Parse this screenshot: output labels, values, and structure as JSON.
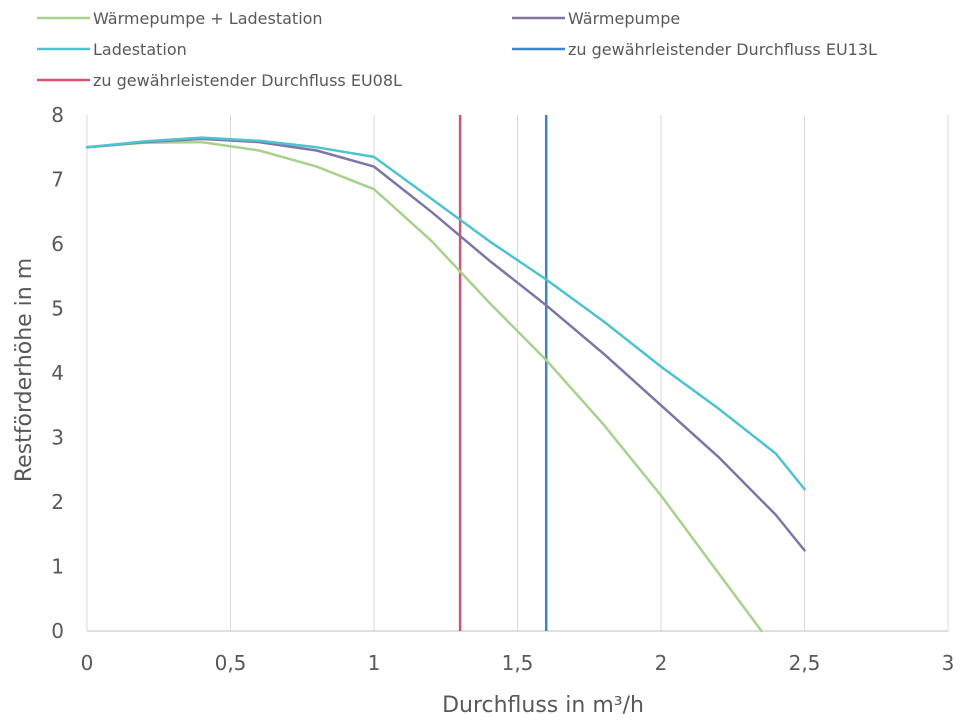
{
  "chart_data": {
    "type": "line",
    "xlabel": "Durchfluss in m³/h",
    "ylabel": "Restförderhöhe in m",
    "xlim": [
      0,
      3
    ],
    "ylim": [
      0,
      8
    ],
    "x_ticks": [
      0,
      0.5,
      1,
      1.5,
      2,
      2.5,
      3
    ],
    "x_tick_labels": [
      "0",
      "0,5",
      "1",
      "1,5",
      "2",
      "2,5",
      "3"
    ],
    "y_ticks": [
      0,
      1,
      2,
      3,
      4,
      5,
      6,
      7,
      8
    ],
    "y_tick_labels": [
      "0",
      "1",
      "2",
      "3",
      "4",
      "5",
      "6",
      "7",
      "8"
    ],
    "grid": "vertical",
    "legend_position": "top",
    "series": [
      {
        "name": "Wärmepumpe + Ladestation",
        "color": "#a9d18e",
        "points": [
          [
            0,
            7.5
          ],
          [
            0.2,
            7.57
          ],
          [
            0.4,
            7.58
          ],
          [
            0.6,
            7.45
          ],
          [
            0.8,
            7.2
          ],
          [
            1.0,
            6.85
          ],
          [
            1.2,
            6.05
          ],
          [
            1.4,
            5.1
          ],
          [
            1.6,
            4.2
          ],
          [
            1.8,
            3.2
          ],
          [
            2.0,
            2.1
          ],
          [
            2.2,
            0.9
          ],
          [
            2.35,
            0.0
          ]
        ]
      },
      {
        "name": "Wärmepumpe",
        "color": "#8074a6",
        "points": [
          [
            0,
            7.5
          ],
          [
            0.2,
            7.58
          ],
          [
            0.4,
            7.63
          ],
          [
            0.6,
            7.58
          ],
          [
            0.8,
            7.45
          ],
          [
            1.0,
            7.2
          ],
          [
            1.2,
            6.5
          ],
          [
            1.4,
            5.75
          ],
          [
            1.6,
            5.05
          ],
          [
            1.8,
            4.3
          ],
          [
            2.0,
            3.5
          ],
          [
            2.2,
            2.7
          ],
          [
            2.4,
            1.8
          ],
          [
            2.5,
            1.25
          ]
        ]
      },
      {
        "name": "Ladestation",
        "color": "#4dc3cf",
        "points": [
          [
            0,
            7.5
          ],
          [
            0.2,
            7.59
          ],
          [
            0.4,
            7.65
          ],
          [
            0.6,
            7.6
          ],
          [
            0.8,
            7.5
          ],
          [
            1.0,
            7.35
          ],
          [
            1.2,
            6.7
          ],
          [
            1.4,
            6.05
          ],
          [
            1.6,
            5.45
          ],
          [
            1.8,
            4.8
          ],
          [
            2.0,
            4.1
          ],
          [
            2.2,
            3.45
          ],
          [
            2.4,
            2.75
          ],
          [
            2.5,
            2.2
          ]
        ]
      }
    ],
    "reference_lines": [
      {
        "name": "zu gewährleistender Durchfluss EU13L",
        "color": "#3c86c4",
        "x": 1.6
      },
      {
        "name": "zu gewährleistender Durchfluss EU08L",
        "color": "#d6536b",
        "x": 1.3
      }
    ],
    "legend": [
      {
        "name": "Wärmepumpe + Ladestation",
        "color": "#a9d18e"
      },
      {
        "name": "Wärmepumpe",
        "color": "#8074a6"
      },
      {
        "name": "Ladestation",
        "color": "#4dc3cf"
      },
      {
        "name": "zu gewährleistender Durchfluss EU13L",
        "color": "#3c86c4"
      },
      {
        "name": "zu gewährleistender Durchfluss EU08L",
        "color": "#d6536b"
      }
    ]
  }
}
